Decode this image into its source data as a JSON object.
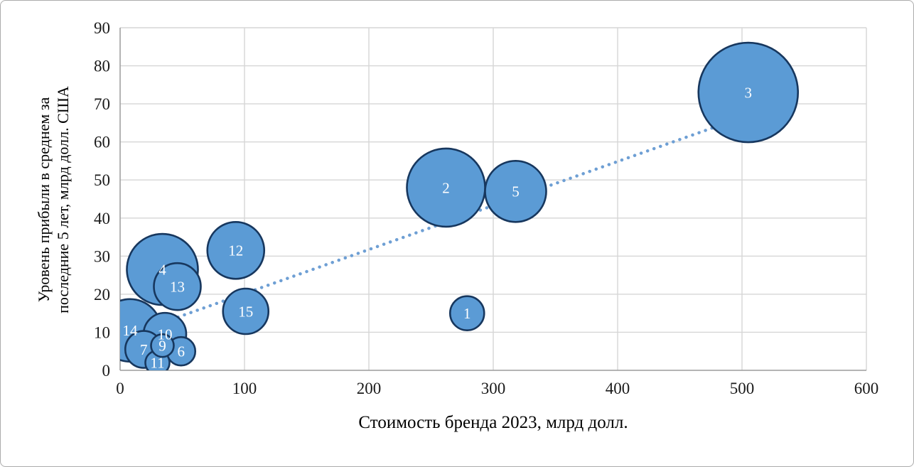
{
  "frame": {
    "background": "#FFFFFF",
    "border_color": "#ABABAB"
  },
  "chart_data": {
    "type": "bubble",
    "title": "",
    "xlabel": "Стоимость бренда 2023, млрд долл.",
    "ylabel": "Уровень прибыли в среднем за последние 5 лет, млрд долл. США",
    "ylabel_lines": [
      "Уровень прибыли в среднем за",
      "последние 5 лет, млрд долл. США"
    ],
    "xlim": [
      0,
      600
    ],
    "ylim": [
      0,
      90
    ],
    "x_ticks": [
      0,
      100,
      200,
      300,
      400,
      500,
      600
    ],
    "y_ticks": [
      0,
      10,
      20,
      30,
      40,
      50,
      60,
      70,
      80,
      90
    ],
    "grid": true,
    "legend": false,
    "points": [
      {
        "label": "1",
        "x": 279,
        "y": 15,
        "r": 24
      },
      {
        "label": "2",
        "x": 262,
        "y": 48,
        "r": 55
      },
      {
        "label": "3",
        "x": 505,
        "y": 73,
        "r": 70
      },
      {
        "label": "4",
        "x": 34,
        "y": 26.5,
        "r": 50
      },
      {
        "label": "5",
        "x": 318,
        "y": 47,
        "r": 43
      },
      {
        "label": "6",
        "x": 49,
        "y": 5,
        "r": 20
      },
      {
        "label": "7",
        "x": 19,
        "y": 5.5,
        "r": 26
      },
      {
        "label": "9",
        "x": 34,
        "y": 6.5,
        "r": 16
      },
      {
        "label": "10",
        "x": 36,
        "y": 9.5,
        "r": 30
      },
      {
        "label": "11",
        "x": 30,
        "y": 2,
        "r": 17
      },
      {
        "label": "12",
        "x": 93,
        "y": 31.5,
        "r": 40
      },
      {
        "label": "13",
        "x": 46,
        "y": 22,
        "r": 33
      },
      {
        "label": "14",
        "x": 8,
        "y": 10.5,
        "r": 44
      },
      {
        "label": "15",
        "x": 101,
        "y": 15.5,
        "r": 32
      }
    ],
    "trendline": {
      "type": "linear",
      "style": "dotted",
      "x1": 0,
      "y1": 8.6,
      "x2": 505,
      "y2": 67
    },
    "colors": {
      "bubble_fill": "#5B9BD5",
      "bubble_stroke": "#17375E",
      "bubble_label": "#FFFFFF",
      "grid": "#D6D6D6",
      "axis": "#9C9C9C",
      "tick_label": "#1A1A1A",
      "trendline": "#6E9FD4"
    }
  }
}
